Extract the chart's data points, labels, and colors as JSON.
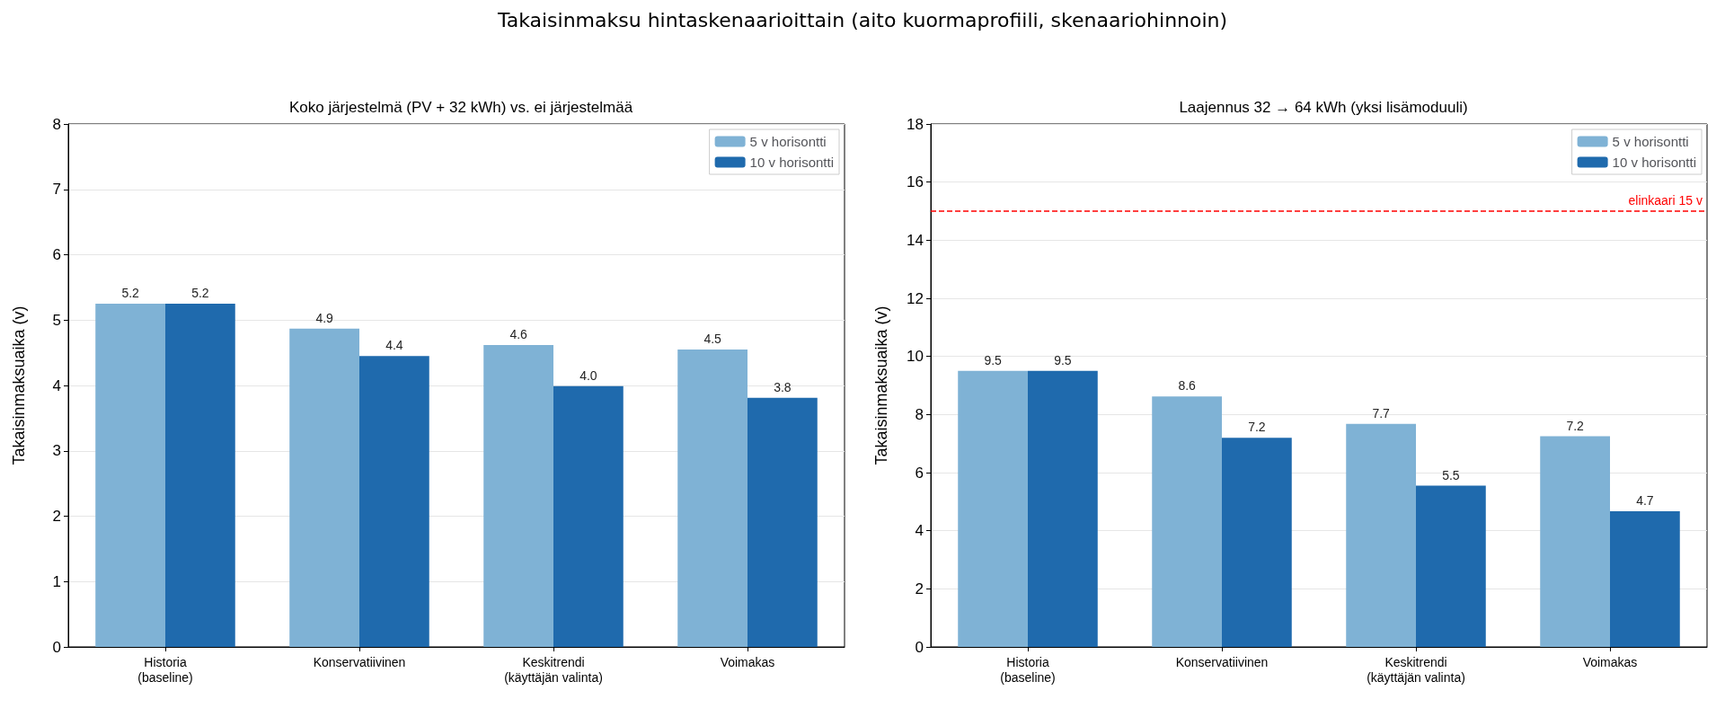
{
  "chart_data": [
    {
      "type": "bar",
      "title": "Koko järjestelmä (PV + 32 kWh) vs. ei järjestelmää",
      "ylabel": "Takaisinmaksuaika (v)",
      "annotations": [
        "Takaisinmaksu hintaskenaarioittain (aito kuormaprofiili, skenaariohinnoin)"
      ],
      "categories": [
        "Historia\n(baseline)",
        "Konservatiivinen",
        "Keskitrendi\n(käyttäjän valinta)",
        "Voimakas"
      ],
      "series": [
        {
          "name": "5 v horisontti",
          "color": "#7fb2d5",
          "values": [
            5.25,
            4.87,
            4.62,
            4.55
          ],
          "value_labels": [
            "5.2",
            "4.9",
            "4.6",
            "4.5"
          ]
        },
        {
          "name": "10 v horisontti",
          "color": "#1f6aad",
          "values": [
            5.25,
            4.45,
            3.99,
            3.81
          ],
          "value_labels": [
            "5.2",
            "4.4",
            "4.0",
            "3.8"
          ]
        }
      ],
      "ylim": [
        0,
        8
      ],
      "yticks": [
        0,
        1,
        2,
        3,
        4,
        5,
        6,
        7,
        8
      ],
      "grid": "y",
      "legend": "top right"
    },
    {
      "type": "bar",
      "title": "Laajennus 32 → 64 kWh (yksi lisämoduuli)",
      "ylabel": "Takaisinmaksuaika (v)",
      "categories": [
        "Historia\n(baseline)",
        "Konservatiivinen",
        "Keskitrendi\n(käyttäjän valinta)",
        "Voimakas"
      ],
      "series": [
        {
          "name": "5 v horisontti",
          "color": "#7fb2d5",
          "values": [
            9.5,
            8.62,
            7.68,
            7.25
          ],
          "value_labels": [
            "9.5",
            "8.6",
            "7.7",
            "7.2"
          ]
        },
        {
          "name": "10 v horisontti",
          "color": "#1f6aad",
          "values": [
            9.5,
            7.2,
            5.55,
            4.67
          ],
          "value_labels": [
            "9.5",
            "7.2",
            "5.5",
            "4.7"
          ]
        }
      ],
      "ylim": [
        0,
        18
      ],
      "yticks": [
        0,
        2,
        4,
        6,
        8,
        10,
        12,
        14,
        16,
        18
      ],
      "grid": "y",
      "legend": "top right",
      "ref_lines": [
        {
          "axis": "y",
          "value": 15,
          "label": "elinkaari 15 v",
          "color": "#ff0000",
          "line_style": "dashed"
        }
      ]
    }
  ]
}
